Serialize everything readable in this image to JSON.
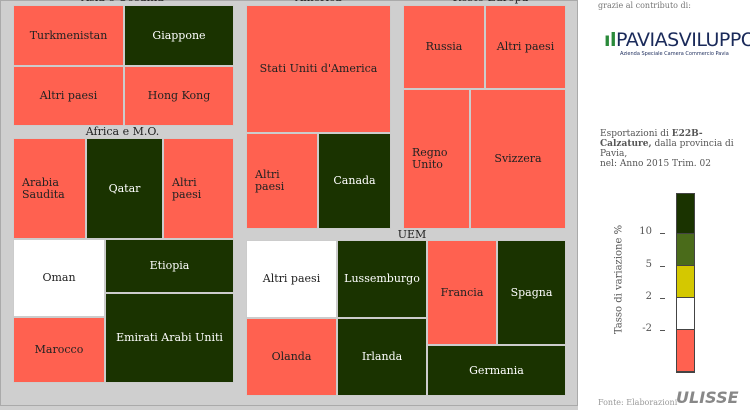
{
  "groups": [
    {
      "name": "Asia e Oceania",
      "cells": [
        "Turkmenistan",
        "Giappone",
        "Altri paesi",
        "Hong Kong"
      ]
    },
    {
      "name": "America",
      "cells": [
        "Stati Uniti d'America",
        "Altri paesi",
        "Canada"
      ]
    },
    {
      "name": "Resto Europa",
      "cells": [
        "Russia",
        "Altri paesi",
        "Regno Unito",
        "Svizzera"
      ]
    },
    {
      "name": "Africa e M.O.",
      "cells": [
        "Arabia Saudita",
        "Qatar",
        "Altri paesi",
        "Oman",
        "Etiopia",
        "Marocco",
        "Emirati Arabi Uniti"
      ]
    },
    {
      "name": "UEM",
      "cells": [
        "Altri paesi",
        "Lussemburgo",
        "Francia",
        "Spagna",
        "Olanda",
        "Irlanda",
        "Germania"
      ]
    }
  ],
  "panel": {
    "thanks": "grazie al contributo di:",
    "logo": "PAVIASVILUPPO",
    "logo_sub": "Azienda Speciale Camera Commercio Pavia",
    "desc_pre": "Esportazioni di",
    "desc_bold": "E22B-Calzature,",
    "desc_post": "dalla provincia di Pavia,",
    "desc_period": "nel: Anno 2015 Trim. 02",
    "legend_title": "Tasso di variazione %",
    "legend_ticks": [
      10,
      5,
      2,
      -2
    ],
    "source": "Fonte: Elaborazioni",
    "source_logo": "ULISSE"
  }
}
